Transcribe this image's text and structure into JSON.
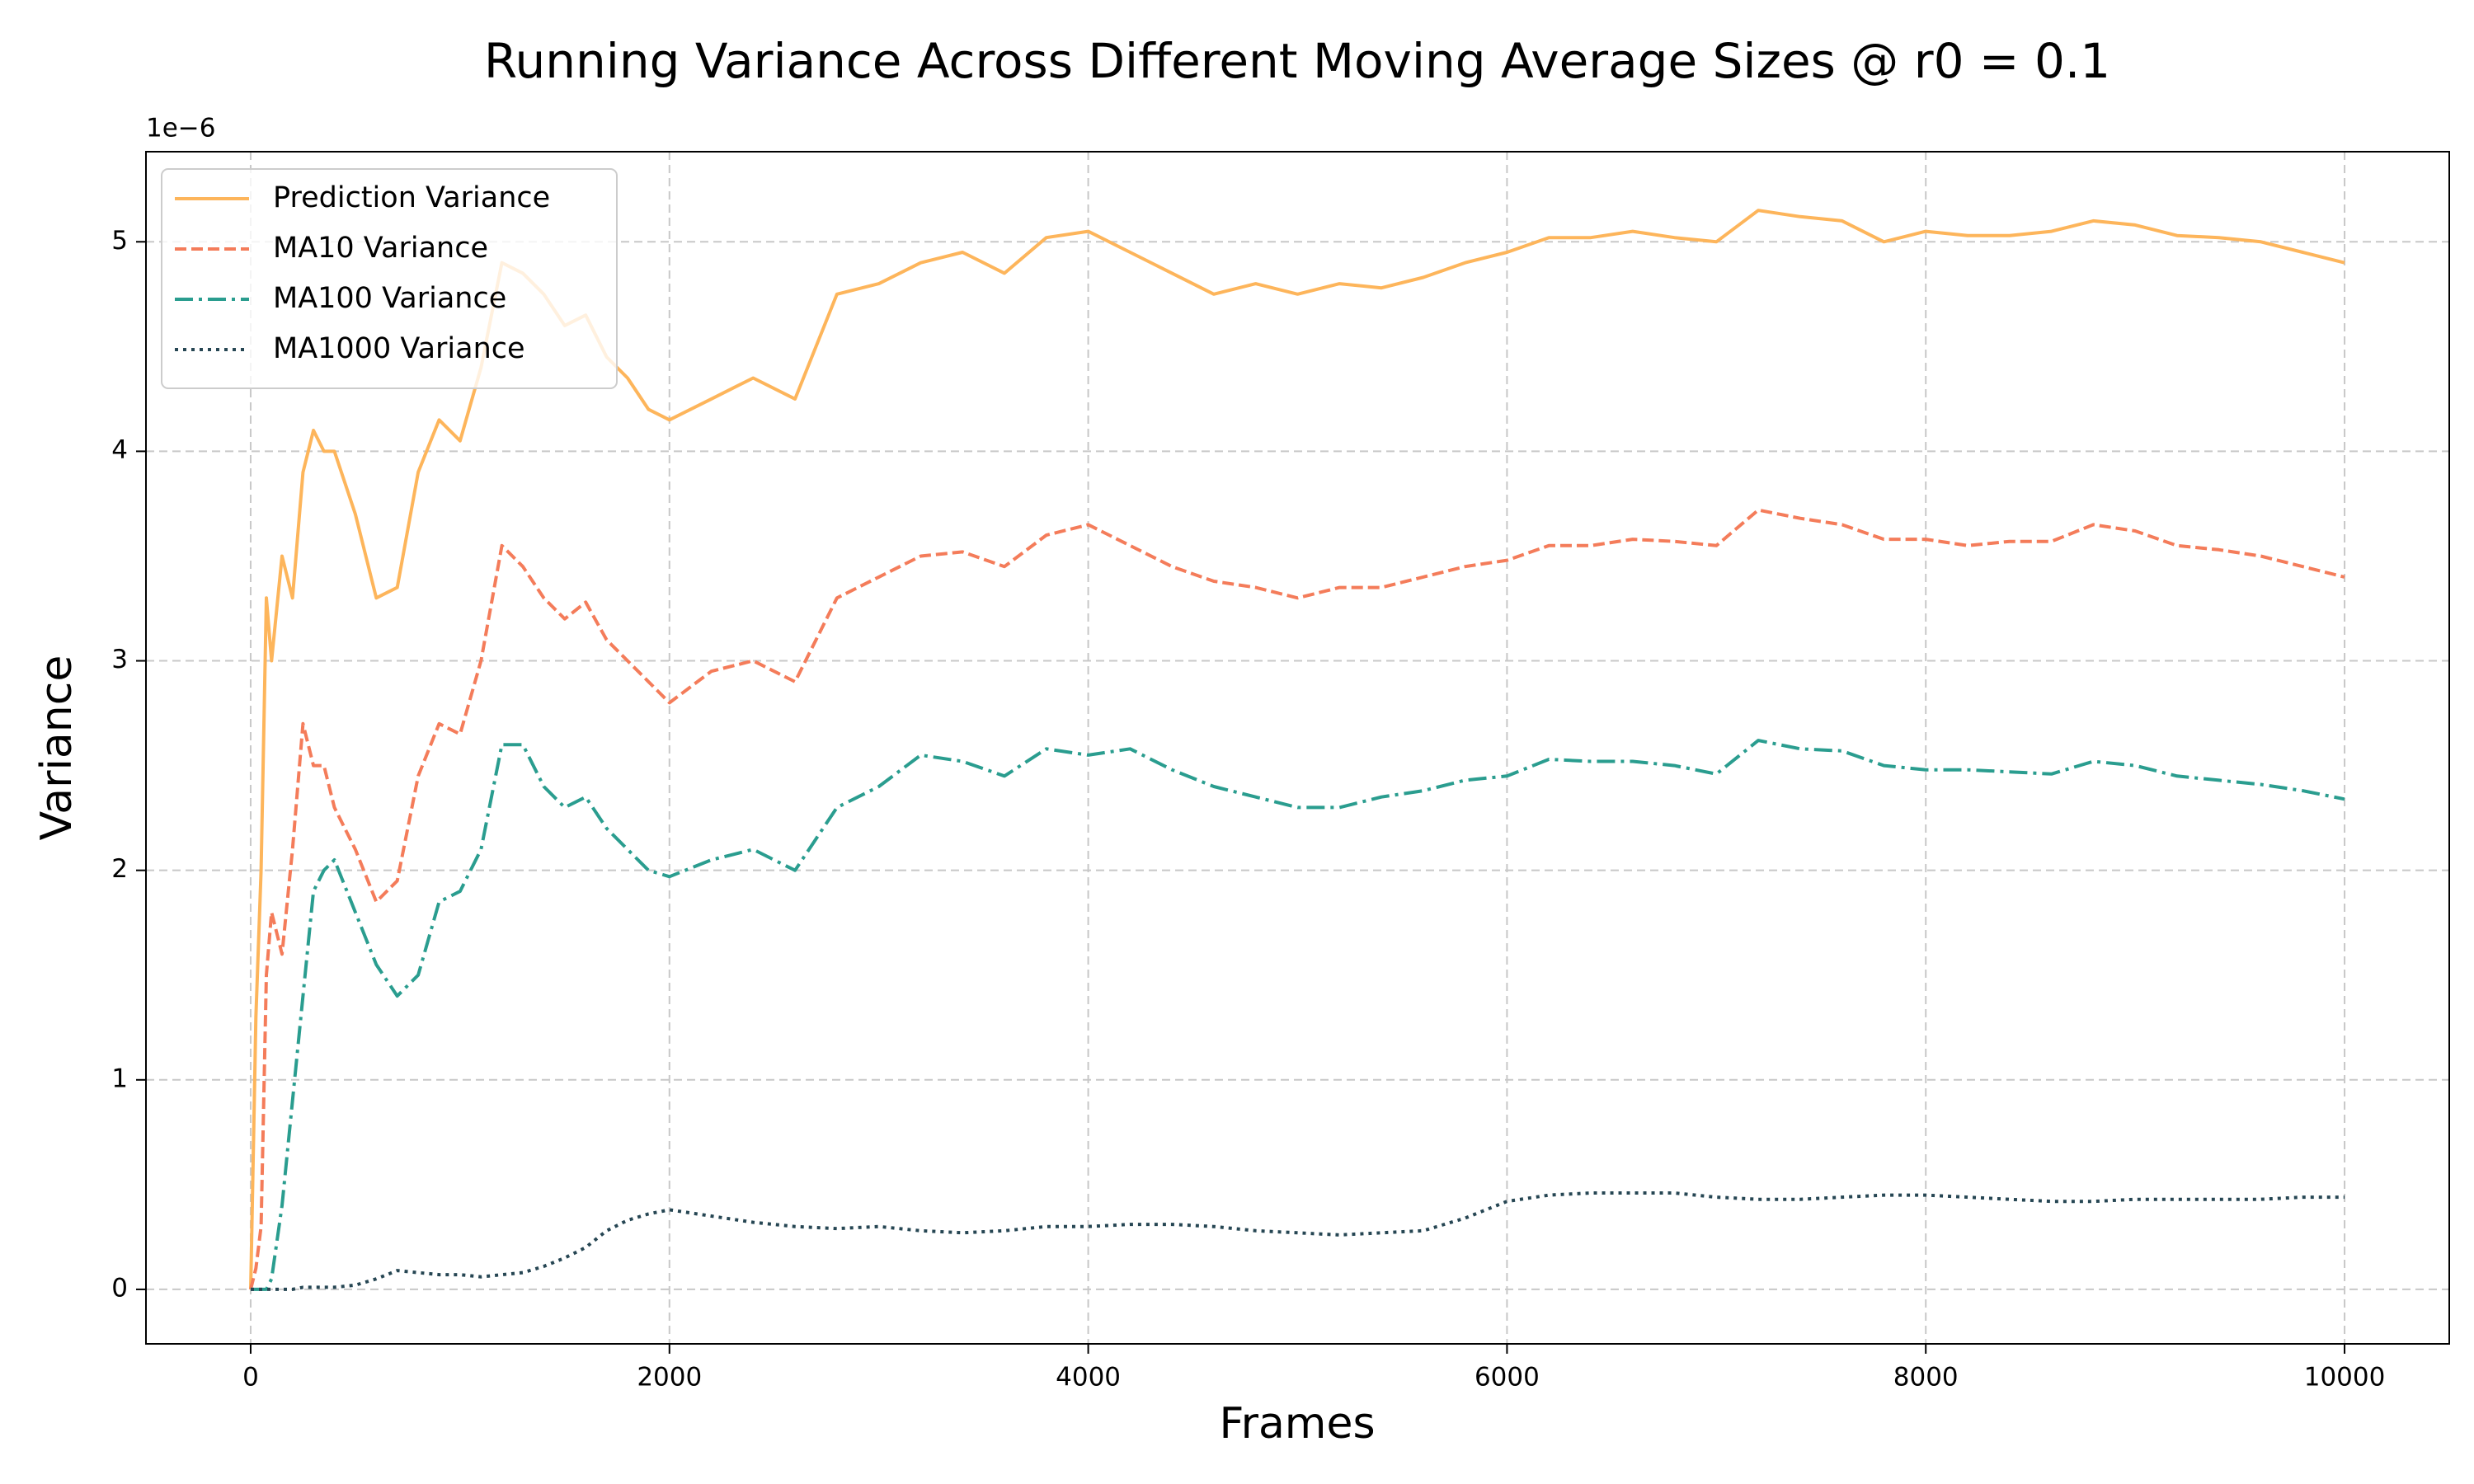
{
  "chart_data": {
    "type": "line",
    "title": "Running Variance Across Different Moving Average Sizes @ r0 = 0.1",
    "x_label": "Frames",
    "y_label": "Variance",
    "y_offset_label": "1e−6",
    "x": [
      0,
      25,
      50,
      75,
      100,
      150,
      200,
      250,
      300,
      350,
      400,
      500,
      600,
      700,
      800,
      900,
      1000,
      1100,
      1200,
      1300,
      1400,
      1500,
      1600,
      1700,
      1800,
      1900,
      2000,
      2200,
      2400,
      2600,
      2800,
      3000,
      3200,
      3400,
      3600,
      3800,
      4000,
      4200,
      4400,
      4600,
      4800,
      5000,
      5200,
      5400,
      5600,
      5800,
      6000,
      6200,
      6400,
      6600,
      6800,
      7000,
      7200,
      7400,
      7600,
      7800,
      8000,
      8200,
      8400,
      8600,
      8800,
      9000,
      9200,
      9400,
      9600,
      9800,
      10000
    ],
    "series": [
      {
        "name": "Prediction Variance",
        "color": "#fdb55b",
        "dash": "solid",
        "values": [
          0,
          1.3,
          2.0,
          3.3,
          3.0,
          3.5,
          3.3,
          3.9,
          4.1,
          4.0,
          4.0,
          3.7,
          3.3,
          3.35,
          3.9,
          4.15,
          4.05,
          4.4,
          4.9,
          4.85,
          4.75,
          4.6,
          4.65,
          4.45,
          4.35,
          4.2,
          4.15,
          4.25,
          4.35,
          4.25,
          4.75,
          4.8,
          4.9,
          4.95,
          4.85,
          5.02,
          5.05,
          4.95,
          4.85,
          4.75,
          4.8,
          4.75,
          4.8,
          4.78,
          4.83,
          4.9,
          4.95,
          5.02,
          5.02,
          5.05,
          5.02,
          5.0,
          5.15,
          5.12,
          5.1,
          5.0,
          5.05,
          5.03,
          5.03,
          5.05,
          5.1,
          5.08,
          5.03,
          5.02,
          5.0,
          4.95,
          4.9
        ]
      },
      {
        "name": "MA10 Variance",
        "color": "#f47c5a",
        "dash": "dashed",
        "values": [
          0,
          0.1,
          0.3,
          1.5,
          1.8,
          1.6,
          2.1,
          2.7,
          2.5,
          2.5,
          2.3,
          2.1,
          1.85,
          1.95,
          2.45,
          2.7,
          2.65,
          3.0,
          3.55,
          3.45,
          3.3,
          3.2,
          3.28,
          3.1,
          3.0,
          2.9,
          2.8,
          2.95,
          3.0,
          2.9,
          3.3,
          3.4,
          3.5,
          3.52,
          3.45,
          3.6,
          3.65,
          3.55,
          3.45,
          3.38,
          3.35,
          3.3,
          3.35,
          3.35,
          3.4,
          3.45,
          3.48,
          3.55,
          3.55,
          3.58,
          3.57,
          3.55,
          3.72,
          3.68,
          3.65,
          3.58,
          3.58,
          3.55,
          3.57,
          3.57,
          3.65,
          3.62,
          3.55,
          3.53,
          3.5,
          3.45,
          3.4
        ]
      },
      {
        "name": "MA100 Variance",
        "color": "#2a9d8f",
        "dash": "dashdot",
        "values": [
          0,
          0,
          0,
          0,
          0.05,
          0.4,
          0.9,
          1.4,
          1.9,
          2.0,
          2.05,
          1.8,
          1.55,
          1.4,
          1.5,
          1.85,
          1.9,
          2.1,
          2.6,
          2.6,
          2.4,
          2.3,
          2.35,
          2.2,
          2.1,
          2.0,
          1.97,
          2.05,
          2.1,
          2.0,
          2.3,
          2.4,
          2.55,
          2.52,
          2.45,
          2.58,
          2.55,
          2.58,
          2.48,
          2.4,
          2.35,
          2.3,
          2.3,
          2.35,
          2.38,
          2.43,
          2.45,
          2.53,
          2.52,
          2.52,
          2.5,
          2.46,
          2.62,
          2.58,
          2.57,
          2.5,
          2.48,
          2.48,
          2.47,
          2.46,
          2.52,
          2.5,
          2.45,
          2.43,
          2.41,
          2.38,
          2.34
        ]
      },
      {
        "name": "MA1000 Variance",
        "color": "#264653",
        "dash": "dotted",
        "values": [
          0,
          0,
          0,
          0,
          0,
          0,
          0,
          0.01,
          0.01,
          0.01,
          0.01,
          0.02,
          0.05,
          0.09,
          0.08,
          0.07,
          0.07,
          0.06,
          0.07,
          0.08,
          0.11,
          0.15,
          0.2,
          0.28,
          0.33,
          0.36,
          0.38,
          0.35,
          0.32,
          0.3,
          0.29,
          0.3,
          0.28,
          0.27,
          0.28,
          0.3,
          0.3,
          0.31,
          0.31,
          0.3,
          0.28,
          0.27,
          0.26,
          0.27,
          0.28,
          0.34,
          0.42,
          0.45,
          0.46,
          0.46,
          0.46,
          0.44,
          0.43,
          0.43,
          0.44,
          0.45,
          0.45,
          0.44,
          0.43,
          0.42,
          0.42,
          0.43,
          0.43,
          0.43,
          0.43,
          0.44,
          0.44
        ]
      }
    ],
    "xlim": [
      -500,
      10500
    ],
    "xticks": [
      0,
      2000,
      4000,
      6000,
      8000,
      10000
    ],
    "ylim": [
      -0.26,
      5.43
    ],
    "yticks": [
      0,
      1,
      2,
      3,
      4,
      5
    ],
    "grid": true,
    "legend": "upper left"
  }
}
